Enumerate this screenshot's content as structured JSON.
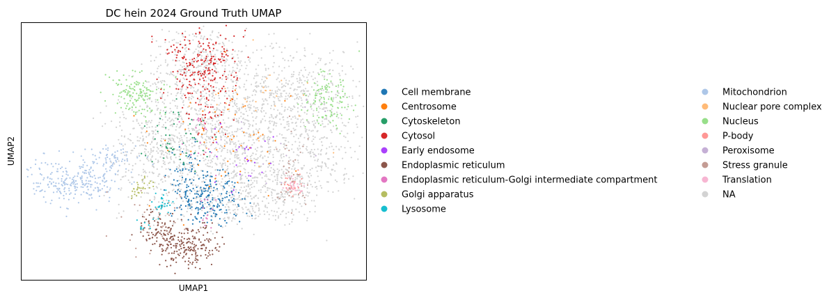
{
  "chart_data": {
    "type": "scatter",
    "title": "DC hein 2024 Ground Truth UMAP",
    "xlabel": "UMAP1",
    "ylabel": "UMAP2",
    "xticks": [],
    "yticks": [],
    "grid": false,
    "legend_position": "right",
    "legend": [
      {
        "label": "Cell membrane",
        "color": "#1f77b4"
      },
      {
        "label": "Centrosome",
        "color": "#ff7f0e"
      },
      {
        "label": "Cytoskeleton",
        "color": "#279e68"
      },
      {
        "label": "Cytosol",
        "color": "#d62728"
      },
      {
        "label": "Early endosome",
        "color": "#aa40fc"
      },
      {
        "label": "Endoplasmic reticulum",
        "color": "#8c564b"
      },
      {
        "label": "Endoplasmic reticulum-Golgi intermediate compartment",
        "color": "#e377c2"
      },
      {
        "label": "Golgi apparatus",
        "color": "#b5bd61"
      },
      {
        "label": "Lysosome",
        "color": "#17becf"
      },
      {
        "label": "Mitochondrion",
        "color": "#aec7e8"
      },
      {
        "label": "Nuclear pore complex",
        "color": "#ffbb78"
      },
      {
        "label": "Nucleus",
        "color": "#98df8a"
      },
      {
        "label": "P-body",
        "color": "#ff9896"
      },
      {
        "label": "Peroxisome",
        "color": "#c5b0d5"
      },
      {
        "label": "Stress granule",
        "color": "#c49c94"
      },
      {
        "label": "Translation",
        "color": "#f7b6d2"
      },
      {
        "label": "NA",
        "color": "#d3d3d3"
      }
    ]
  }
}
